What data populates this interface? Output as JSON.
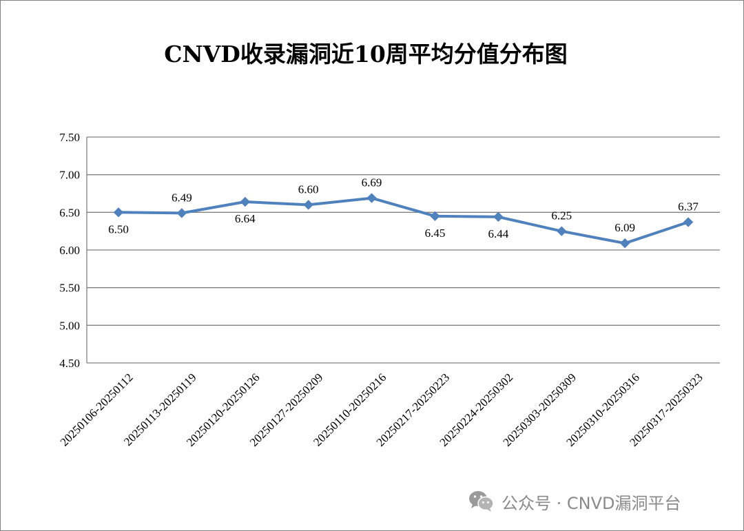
{
  "chart_data": {
    "type": "line",
    "title": "CNVD收录漏洞近10周平均分值分布图",
    "categories": [
      "20250106-20250112",
      "20250113-20250119",
      "20250120-20250126",
      "20250127-20250209",
      "20250110-20250216",
      "20250217-20250223",
      "20250224-20250302",
      "20250303-20250309",
      "20250310-20250316",
      "20250317-20250323"
    ],
    "series": [
      {
        "values": [
          6.5,
          6.49,
          6.64,
          6.6,
          6.69,
          6.45,
          6.44,
          6.25,
          6.09,
          6.37
        ],
        "data_labels": [
          "6.50",
          "6.49",
          "6.64",
          "6.60",
          "6.69",
          "6.45",
          "6.44",
          "6.25",
          "6.09",
          "6.37"
        ],
        "label_positions": [
          "below",
          "above",
          "below",
          "above",
          "above",
          "below",
          "below",
          "above",
          "above",
          "above"
        ],
        "color": "#4f81bd",
        "marker": "diamond"
      }
    ],
    "ylim": [
      4.5,
      7.5
    ],
    "yticks": [
      "4.50",
      "5.00",
      "5.50",
      "6.00",
      "6.50",
      "7.00",
      "7.50"
    ],
    "ytick_values": [
      4.5,
      5.0,
      5.5,
      6.0,
      6.5,
      7.0,
      7.5
    ],
    "grid": true,
    "xlabel": "",
    "ylabel": ""
  },
  "watermark": {
    "icon": "wechat-icon",
    "text": "公众号 · CNVD漏洞平台",
    "color": "#8a8a8a"
  }
}
